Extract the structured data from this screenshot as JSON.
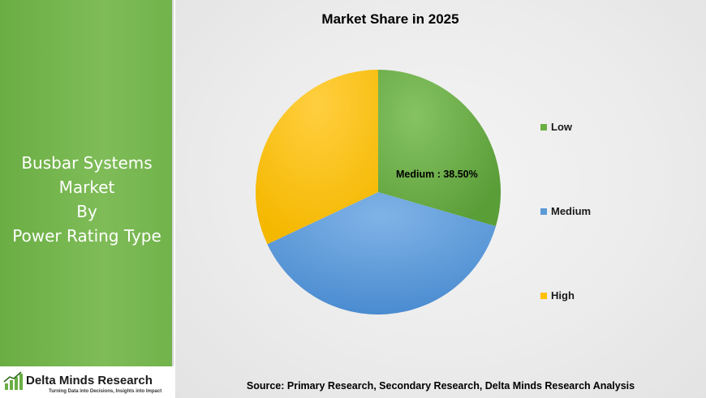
{
  "sidebar": {
    "title_lines": [
      "Busbar Systems",
      "Market",
      "By",
      "Power Rating Type"
    ]
  },
  "logo": {
    "name": "Delta Minds Research",
    "tagline": "Turning Data into Decisions, Insights into Impact",
    "icon": "bar-chart-growth-icon"
  },
  "chart_data": {
    "type": "pie",
    "title": "Market Share in 2025",
    "categories": [
      "Low",
      "Medium",
      "High"
    ],
    "values": [
      29.5,
      38.5,
      32.0
    ],
    "colors": [
      "#6aae43",
      "#5b9bd5",
      "#ffc000"
    ],
    "data_labels": [
      {
        "category": "Medium",
        "text": "Medium : 38.50%"
      }
    ],
    "legend_position": "right",
    "start_angle_deg": 0,
    "direction": "clockwise"
  },
  "source": "Source: Primary Research, Secondary Research, Delta Minds Research Analysis"
}
